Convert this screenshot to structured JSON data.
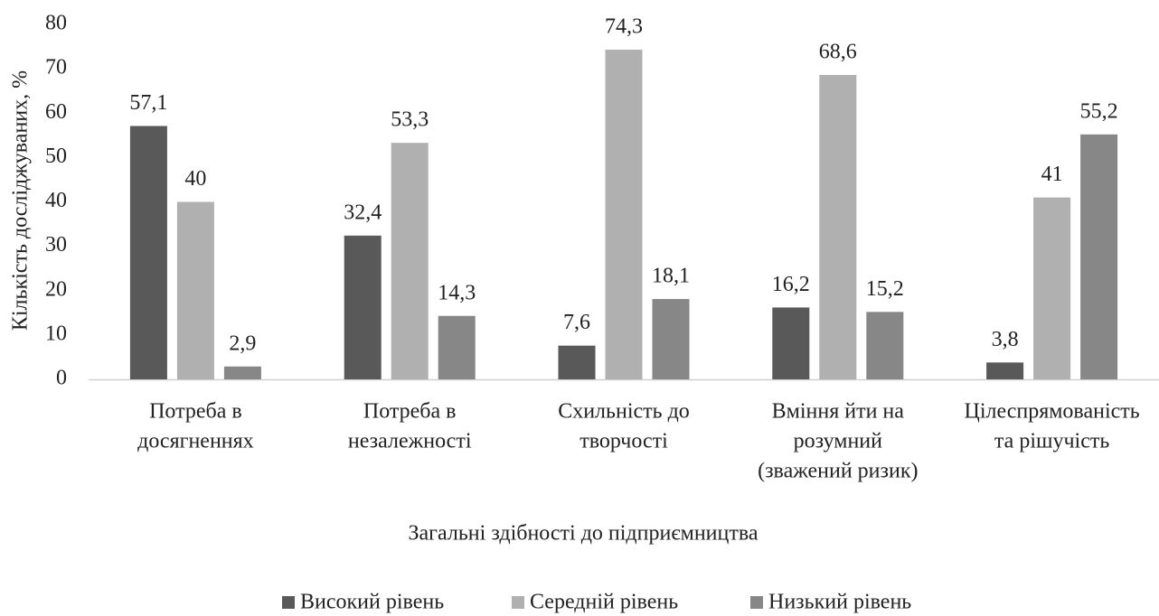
{
  "chart_data": {
    "type": "bar",
    "y_label": "Кількість досліджуваних, %",
    "x_label": "Загальні здібності до підприємництва",
    "categories": [
      [
        "Потреба в",
        "досягненнях"
      ],
      [
        "Потреба в",
        "незалежності"
      ],
      [
        "Схильність до",
        "творчості"
      ],
      [
        "Вміння йти на",
        "розумний",
        "(зважений ризик)"
      ],
      [
        "Цілеспрямованість",
        "та рішучість"
      ]
    ],
    "series": [
      {
        "name": "Високий рівень",
        "color": "#595959",
        "values": [
          57.1,
          32.4,
          7.6,
          16.2,
          3.8
        ],
        "value_labels": [
          "57,1",
          "32,4",
          "7,6",
          "16,2",
          "3,8"
        ]
      },
      {
        "name": "Середній рівень",
        "color": "#b0b0b0",
        "values": [
          40,
          53.3,
          74.3,
          68.6,
          41
        ],
        "value_labels": [
          "40",
          "53,3",
          "74,3",
          "68,6",
          "41"
        ]
      },
      {
        "name": "Низький рівень",
        "color": "#878787",
        "values": [
          2.9,
          14.3,
          18.1,
          15.2,
          55.2
        ],
        "value_labels": [
          "2,9",
          "14,3",
          "18,1",
          "15,2",
          "55,2"
        ]
      }
    ],
    "ylim": [
      0,
      80
    ],
    "yticks": [
      0,
      10,
      20,
      30,
      40,
      50,
      60,
      70,
      80
    ],
    "grid": false,
    "legend": "bottom"
  }
}
